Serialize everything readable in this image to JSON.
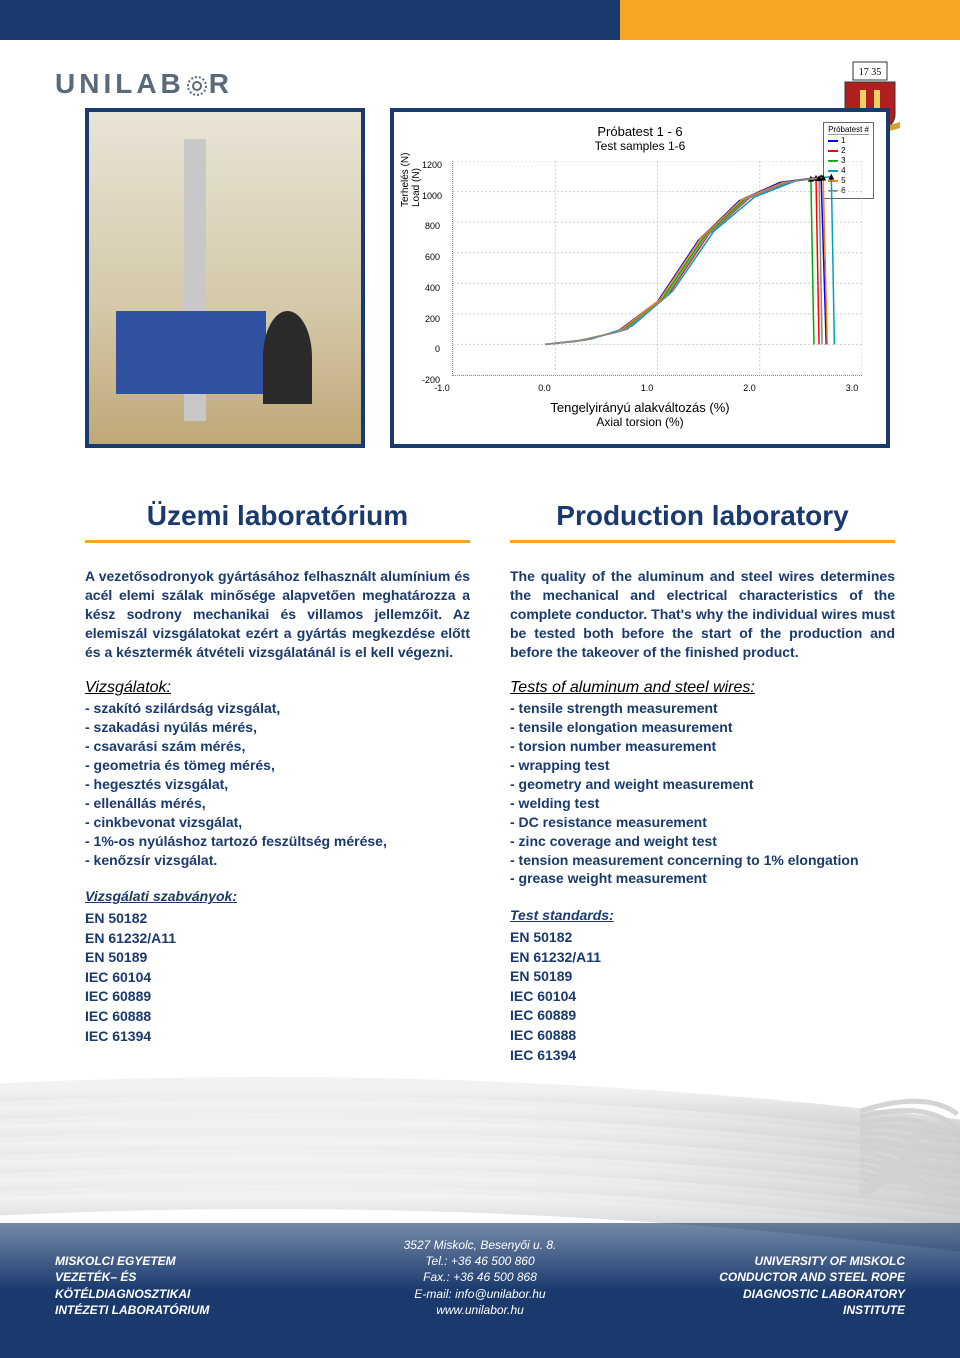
{
  "logo": {
    "text_before": "UNILAB",
    "text_after": "R"
  },
  "crest": {
    "year": "17 35",
    "shield_color": "#b02020",
    "banner_color": "#d4a030"
  },
  "chart": {
    "type": "line",
    "title_top": "Próbatest 1 - 6",
    "title_sub": "Test samples 1-6",
    "legend_title": "Próbatest #",
    "legend_items": [
      {
        "label": "1",
        "color": "#0000ff"
      },
      {
        "label": "2",
        "color": "#ff0000"
      },
      {
        "label": "3",
        "color": "#00aa00"
      },
      {
        "label": "4",
        "color": "#00a0c0"
      },
      {
        "label": "5",
        "color": "#ff8000"
      },
      {
        "label": "6",
        "color": "#888888"
      }
    ],
    "ylabel1": "Terhelés (N)",
    "ylabel2": "Load (N)",
    "xlabel1": "Tengelyirányú alakváltozás (%)",
    "xlabel2": "Axial torsion (%)",
    "xlim": [
      -1.0,
      3.0
    ],
    "ylim": [
      -200,
      1200
    ],
    "xticks": [
      "-1.0",
      "0.0",
      "1.0",
      "2.0",
      "3.0"
    ],
    "yticks": [
      "-200",
      "0",
      "200",
      "400",
      "600",
      "800",
      "1000",
      "1200"
    ],
    "series": [
      {
        "color": "#0000ff",
        "pts": [
          [
            -0.1,
            0
          ],
          [
            0.2,
            20
          ],
          [
            0.6,
            80
          ],
          [
            1.0,
            280
          ],
          [
            1.4,
            680
          ],
          [
            1.8,
            940
          ],
          [
            2.2,
            1060
          ],
          [
            2.6,
            1095
          ],
          [
            2.65,
            0
          ]
        ]
      },
      {
        "color": "#ff0000",
        "pts": [
          [
            -0.1,
            0
          ],
          [
            0.3,
            30
          ],
          [
            0.7,
            100
          ],
          [
            1.1,
            320
          ],
          [
            1.5,
            720
          ],
          [
            1.9,
            960
          ],
          [
            2.3,
            1065
          ],
          [
            2.55,
            1090
          ],
          [
            2.58,
            0
          ]
        ]
      },
      {
        "color": "#00aa00",
        "pts": [
          [
            -0.1,
            0
          ],
          [
            0.25,
            25
          ],
          [
            0.65,
            90
          ],
          [
            1.05,
            300
          ],
          [
            1.45,
            700
          ],
          [
            1.85,
            950
          ],
          [
            2.25,
            1060
          ],
          [
            2.5,
            1085
          ],
          [
            2.53,
            0
          ]
        ]
      },
      {
        "color": "#00a0c0",
        "pts": [
          [
            -0.1,
            0
          ],
          [
            0.35,
            35
          ],
          [
            0.75,
            120
          ],
          [
            1.15,
            350
          ],
          [
            1.55,
            740
          ],
          [
            1.95,
            965
          ],
          [
            2.35,
            1070
          ],
          [
            2.7,
            1098
          ],
          [
            2.73,
            0
          ]
        ]
      },
      {
        "color": "#ff8000",
        "pts": [
          [
            -0.1,
            0
          ],
          [
            0.22,
            22
          ],
          [
            0.62,
            85
          ],
          [
            1.02,
            290
          ],
          [
            1.42,
            690
          ],
          [
            1.82,
            945
          ],
          [
            2.22,
            1058
          ],
          [
            2.62,
            1092
          ],
          [
            2.66,
            0
          ]
        ]
      },
      {
        "color": "#888888",
        "pts": [
          [
            -0.1,
            0
          ],
          [
            0.28,
            28
          ],
          [
            0.68,
            95
          ],
          [
            1.08,
            310
          ],
          [
            1.48,
            710
          ],
          [
            1.88,
            955
          ],
          [
            2.28,
            1063
          ],
          [
            2.58,
            1088
          ],
          [
            2.61,
            0
          ]
        ]
      }
    ],
    "grid_color": "#cccccc",
    "background_color": "#ffffff",
    "line_width": 1.5,
    "title_fontsize": 13,
    "label_fontsize": 10,
    "tick_fontsize": 9
  },
  "left": {
    "title": "Üzemi laboratórium",
    "body": "A vezetősodronyok gyártásához felhasznált alumínium és acél elemi szálak minősége alapvetően meghatározza a kész sodrony mechanikai és villamos jellemzőit. Az elemiszál vizsgálatokat ezért a gyártás megkezdése előtt és a késztermék átvételi vizsgálatánál is el kell végezni.",
    "list_head": "Vizsgálatok:",
    "list": [
      "- szakító szilárdság vizsgálat,",
      "- szakadási nyúlás mérés,",
      "- csavarási szám mérés,",
      "- geometria és tömeg mérés,",
      "- hegesztés vizsgálat,",
      "- ellenállás mérés,",
      "- cinkbevonat vizsgálat,",
      "- 1%-os nyúláshoz tartozó feszültség mérése,",
      "- kenőzsír vizsgálat."
    ],
    "std_head": "Vizsgálati szabványok:",
    "std": [
      "EN 50182",
      "EN 61232/A11",
      "EN 50189",
      "IEC 60104",
      "IEC 60889",
      "IEC 60888",
      "IEC 61394"
    ]
  },
  "right": {
    "title": "Production laboratory",
    "body": "The quality of the aluminum and steel wires determines the mechanical and electrical characteristics of the complete conductor. That's why the individual wires must be tested both before the start of the production and before the takeover of the finished product.",
    "list_head": "Tests of aluminum and steel wires:",
    "list": [
      "- tensile strength measurement",
      "- tensile elongation measurement",
      "- torsion number measurement",
      "- wrapping test",
      "- geometry and weight measurement",
      "- welding test",
      "- DC resistance measurement",
      "- zinc coverage and weight test",
      "- tension measurement concerning to 1% elongation",
      "- grease weight measurement"
    ],
    "std_head": "Test standards:",
    "std": [
      "EN 50182",
      "EN 61232/A11",
      "EN 50189",
      "IEC 60104",
      "IEC 60889",
      "IEC 60888",
      "IEC 61394"
    ]
  },
  "footer": {
    "left": [
      "MISKOLCI EGYETEM",
      "VEZETÉK– ÉS",
      "KÖTÉLDIAGNOSZTIKAI",
      "INTÉZETI LABORATÓRIUM"
    ],
    "center": [
      "3527 Miskolc, Besenyői u. 8.",
      "Tel.: +36 46 500 860",
      "Fax.: +36 46 500 868",
      "E-mail: info@unilabor.hu",
      "www.unilabor.hu"
    ],
    "right": [
      "UNIVERSITY OF MISKOLC",
      "CONDUCTOR AND STEEL ROPE",
      "DIAGNOSTIC LABORATORY",
      "INSTITUTE"
    ]
  },
  "colors": {
    "navy": "#1a3a6e",
    "orange": "#f5a623",
    "logo_gray": "#5a6a7a"
  }
}
